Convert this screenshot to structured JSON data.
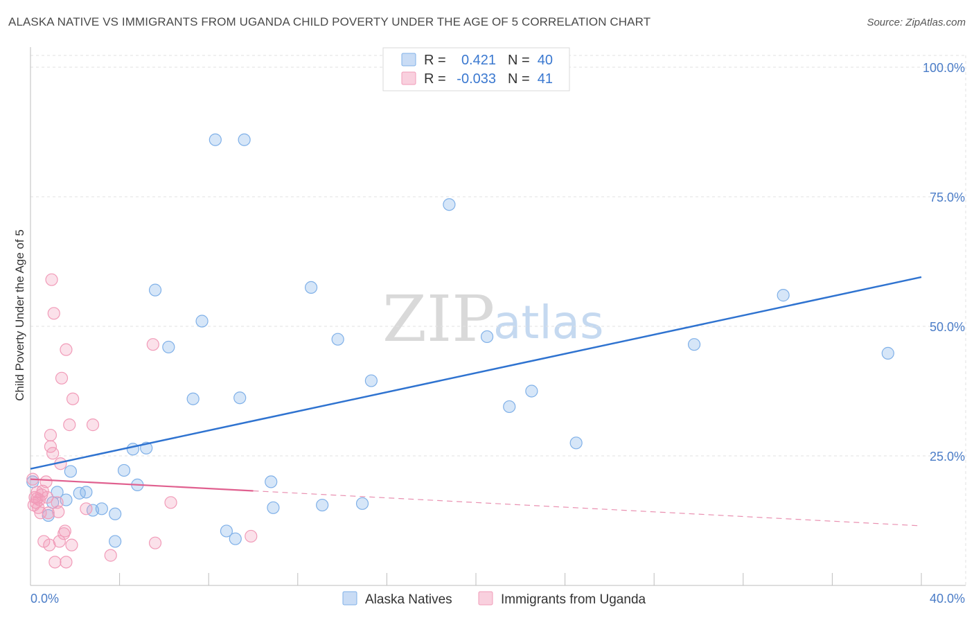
{
  "header": {
    "title": "ALASKA NATIVE VS IMMIGRANTS FROM UGANDA CHILD POVERTY UNDER THE AGE OF 5 CORRELATION CHART",
    "source": "Source: ZipAtlas.com"
  },
  "watermark": {
    "zip": "ZIP",
    "atlas": "atlas"
  },
  "legend": {
    "r_label": "R =",
    "n_label": "N =",
    "entries": [
      {
        "r": "0.421",
        "n": "40",
        "color": "#7fb0e8"
      },
      {
        "r": "-0.033",
        "n": "41",
        "color": "#f19bb8"
      }
    ]
  },
  "chart_data": {
    "type": "scatter",
    "title": "ALASKA NATIVE VS IMMIGRANTS FROM UGANDA CHILD POVERTY UNDER THE AGE OF 5 CORRELATION CHART",
    "xlabel": "",
    "ylabel": "Child Poverty Under the Age of 5",
    "xlim": [
      0,
      40
    ],
    "ylim": [
      0,
      100
    ],
    "x_tick_labels": [
      "0.0%",
      "40.0%"
    ],
    "y_ticks": [
      100,
      75,
      50,
      25
    ],
    "y_tick_labels": [
      "100.0%",
      "75.0%",
      "50.0%",
      "25.0%"
    ],
    "grid": true,
    "legend_position": "top-center",
    "series": [
      {
        "name": "Alaska Natives",
        "color": "#7fb0e8",
        "line_color": "#2f73d0",
        "trend": {
          "x0": 0,
          "y0": 22.5,
          "x1": 40,
          "y1": 59.5,
          "dashed_from": null
        },
        "points": [
          [
            0.1,
            20
          ],
          [
            1.2,
            18
          ],
          [
            1.6,
            16.5
          ],
          [
            1.8,
            22
          ],
          [
            2.2,
            17.8
          ],
          [
            2.5,
            18
          ],
          [
            2.8,
            14.5
          ],
          [
            3.2,
            14.8
          ],
          [
            3.8,
            8.5
          ],
          [
            3.8,
            13.8
          ],
          [
            4.2,
            22.2
          ],
          [
            4.6,
            26.3
          ],
          [
            4.8,
            19.4
          ],
          [
            5.2,
            26.5
          ],
          [
            5.6,
            57
          ],
          [
            6.2,
            46
          ],
          [
            7.3,
            36
          ],
          [
            7.7,
            51
          ],
          [
            8.3,
            86
          ],
          [
            8.8,
            10.5
          ],
          [
            9.2,
            9
          ],
          [
            9.4,
            36.2
          ],
          [
            9.6,
            86
          ],
          [
            10.8,
            20
          ],
          [
            10.9,
            15
          ],
          [
            12.6,
            57.5
          ],
          [
            13.1,
            15.5
          ],
          [
            13.8,
            47.5
          ],
          [
            14.9,
            15.8
          ],
          [
            15.3,
            39.5
          ],
          [
            18.8,
            73.5
          ],
          [
            20.5,
            48
          ],
          [
            21.5,
            34.5
          ],
          [
            22.5,
            37.5
          ],
          [
            24.5,
            27.5
          ],
          [
            29.8,
            46.5
          ],
          [
            33.8,
            56
          ],
          [
            38.5,
            44.8
          ],
          [
            0.8,
            13.5
          ],
          [
            1.0,
            16
          ]
        ]
      },
      {
        "name": "Immigrants from Uganda",
        "color": "#f19bb8",
        "line_color": "#e0608f",
        "trend": {
          "x0": 0,
          "y0": 20.5,
          "x1": 40,
          "y1": 11.5,
          "dashed_from": 10
        },
        "points": [
          [
            0.1,
            20.5
          ],
          [
            0.15,
            15.5
          ],
          [
            0.2,
            17
          ],
          [
            0.25,
            16
          ],
          [
            0.3,
            18
          ],
          [
            0.35,
            15
          ],
          [
            0.4,
            16.5
          ],
          [
            0.45,
            14
          ],
          [
            0.5,
            17.5
          ],
          [
            0.55,
            18.2
          ],
          [
            0.6,
            8.5
          ],
          [
            0.7,
            20
          ],
          [
            0.75,
            17
          ],
          [
            0.8,
            14
          ],
          [
            0.85,
            7.8
          ],
          [
            0.9,
            29
          ],
          [
            0.9,
            26.8
          ],
          [
            0.95,
            59
          ],
          [
            1.0,
            25.5
          ],
          [
            1.05,
            52.5
          ],
          [
            1.1,
            4.5
          ],
          [
            1.2,
            16
          ],
          [
            1.25,
            14.2
          ],
          [
            1.3,
            8.5
          ],
          [
            1.35,
            23.5
          ],
          [
            1.4,
            40
          ],
          [
            1.5,
            10
          ],
          [
            1.55,
            10.5
          ],
          [
            1.6,
            4.5
          ],
          [
            1.6,
            45.5
          ],
          [
            1.75,
            31
          ],
          [
            1.85,
            7.8
          ],
          [
            1.9,
            36
          ],
          [
            2.5,
            14.8
          ],
          [
            2.8,
            31
          ],
          [
            3.6,
            5.8
          ],
          [
            5.5,
            46.5
          ],
          [
            5.6,
            8.2
          ],
          [
            6.3,
            16
          ],
          [
            9.9,
            9.5
          ],
          [
            0.3,
            16.8
          ]
        ]
      }
    ]
  }
}
